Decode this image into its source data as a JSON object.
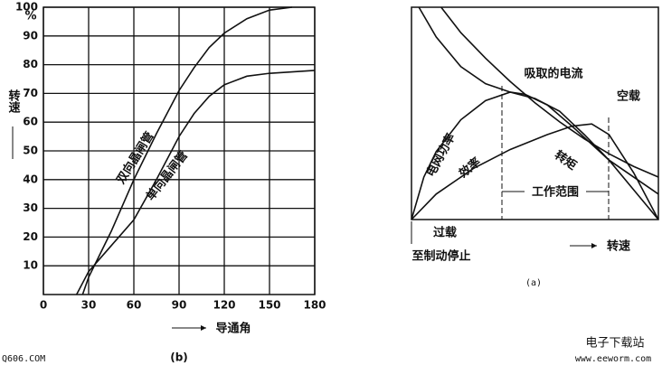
{
  "chart_data": [
    {
      "type": "line",
      "caption": "(b)",
      "xlabel": "导通角",
      "ylabel": "转速",
      "yunit": "%",
      "xlim": [
        0,
        180
      ],
      "ylim": [
        0,
        100
      ],
      "xticks": [
        0,
        30,
        60,
        90,
        120,
        150,
        180
      ],
      "yticks": [
        10,
        20,
        30,
        40,
        50,
        60,
        70,
        80,
        90,
        100
      ],
      "grid": true,
      "series": [
        {
          "name": "双向晶闸管",
          "color": "#111111",
          "x": [
            26,
            30,
            45,
            60,
            75,
            90,
            100,
            110,
            120,
            135,
            150,
            165
          ],
          "values": [
            0,
            6,
            22,
            40,
            56,
            71,
            79,
            86,
            91,
            96,
            99,
            100
          ]
        },
        {
          "name": "单向晶闸管",
          "color": "#111111",
          "x": [
            22,
            30,
            45,
            60,
            75,
            90,
            100,
            110,
            120,
            135,
            150,
            180
          ],
          "values": [
            0,
            8,
            17,
            26,
            40,
            55,
            63,
            69,
            73,
            76,
            77,
            78
          ]
        }
      ]
    },
    {
      "type": "line",
      "caption": "(a)",
      "xlabel": "转速",
      "xlim": [
        0,
        100
      ],
      "ylim": [
        0,
        100
      ],
      "annotations": [
        "空载",
        "工作范围",
        "过载",
        "至制动停止"
      ],
      "series": [
        {
          "name": "吸取的电流",
          "color": "#111111",
          "x": [
            12,
            20,
            30,
            40,
            50,
            60,
            70,
            80,
            90,
            100
          ],
          "values": [
            100,
            88,
            76,
            65,
            55,
            46,
            38,
            31,
            25,
            20
          ]
        },
        {
          "name": "电网功率",
          "color": "#111111",
          "x": [
            0,
            5,
            10,
            20,
            30,
            40,
            46,
            55,
            65,
            80,
            100
          ],
          "values": [
            0,
            20,
            32,
            47,
            56,
            60,
            59,
            54,
            44,
            28,
            12
          ]
        },
        {
          "name": "效率",
          "color": "#111111",
          "x": [
            0,
            10,
            25,
            40,
            55,
            65,
            73,
            80,
            90,
            100
          ],
          "values": [
            0,
            12,
            24,
            33,
            40,
            44,
            45,
            40,
            22,
            0
          ]
        },
        {
          "name": "转矩",
          "color": "#111111",
          "x": [
            3,
            10,
            20,
            30,
            40,
            50,
            60,
            70,
            80,
            90,
            100
          ],
          "values": [
            100,
            86,
            72,
            64,
            60,
            57,
            51,
            40,
            28,
            14,
            0
          ]
        }
      ]
    }
  ],
  "watermark": {
    "site": "Q606.COM",
    "brand": "电子下载站",
    "url": "www.eeworm.com"
  }
}
